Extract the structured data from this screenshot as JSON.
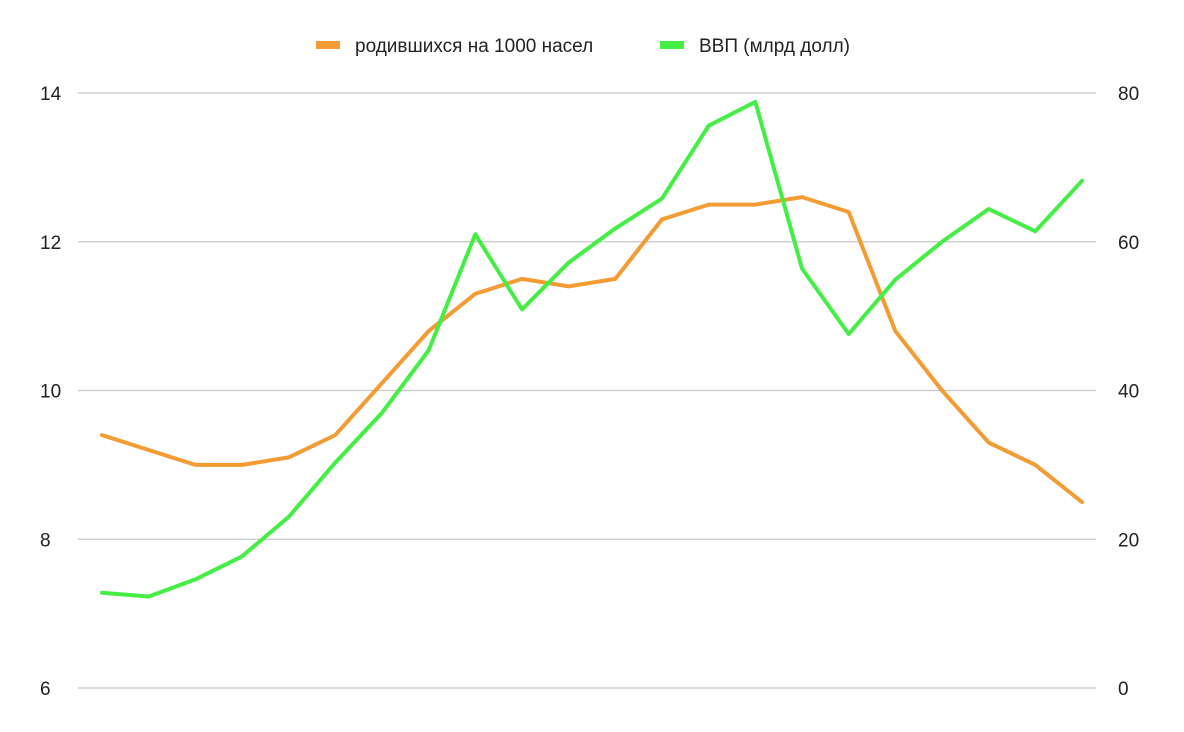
{
  "chart_data": {
    "type": "line",
    "title": "",
    "xlabel": "",
    "ylabel": "",
    "legend_position": "top-center",
    "grid": true,
    "left_axis": {
      "range": [
        6,
        14
      ],
      "ticks": [
        6,
        8,
        10,
        12,
        14
      ]
    },
    "right_axis": {
      "range": [
        0,
        80
      ],
      "ticks": [
        0,
        20,
        40,
        60,
        80
      ]
    },
    "x": [
      1,
      2,
      3,
      4,
      5,
      6,
      7,
      8,
      9,
      10,
      11,
      12,
      13,
      14,
      15,
      16,
      17,
      18,
      19,
      20,
      21,
      22
    ],
    "series": [
      {
        "name": "родившихся на 1000 насел",
        "axis": "left",
        "color": "#F39C33",
        "values": [
          9.4,
          9.2,
          9.0,
          9.0,
          9.1,
          9.4,
          10.1,
          10.8,
          11.3,
          11.5,
          11.4,
          11.5,
          12.3,
          12.5,
          12.5,
          12.6,
          12.4,
          10.8,
          10.0,
          9.3,
          9.0,
          8.5
        ]
      },
      {
        "name": "ВВП (млрд долл)",
        "axis": "right",
        "color": "#44EE44",
        "values": [
          12.8,
          12.3,
          14.6,
          17.7,
          23.0,
          30.3,
          37.0,
          45.4,
          61.0,
          50.9,
          57.2,
          61.8,
          65.8,
          75.6,
          78.8,
          56.4,
          47.6,
          54.9,
          60.0,
          64.4,
          61.4,
          68.2
        ]
      }
    ]
  }
}
